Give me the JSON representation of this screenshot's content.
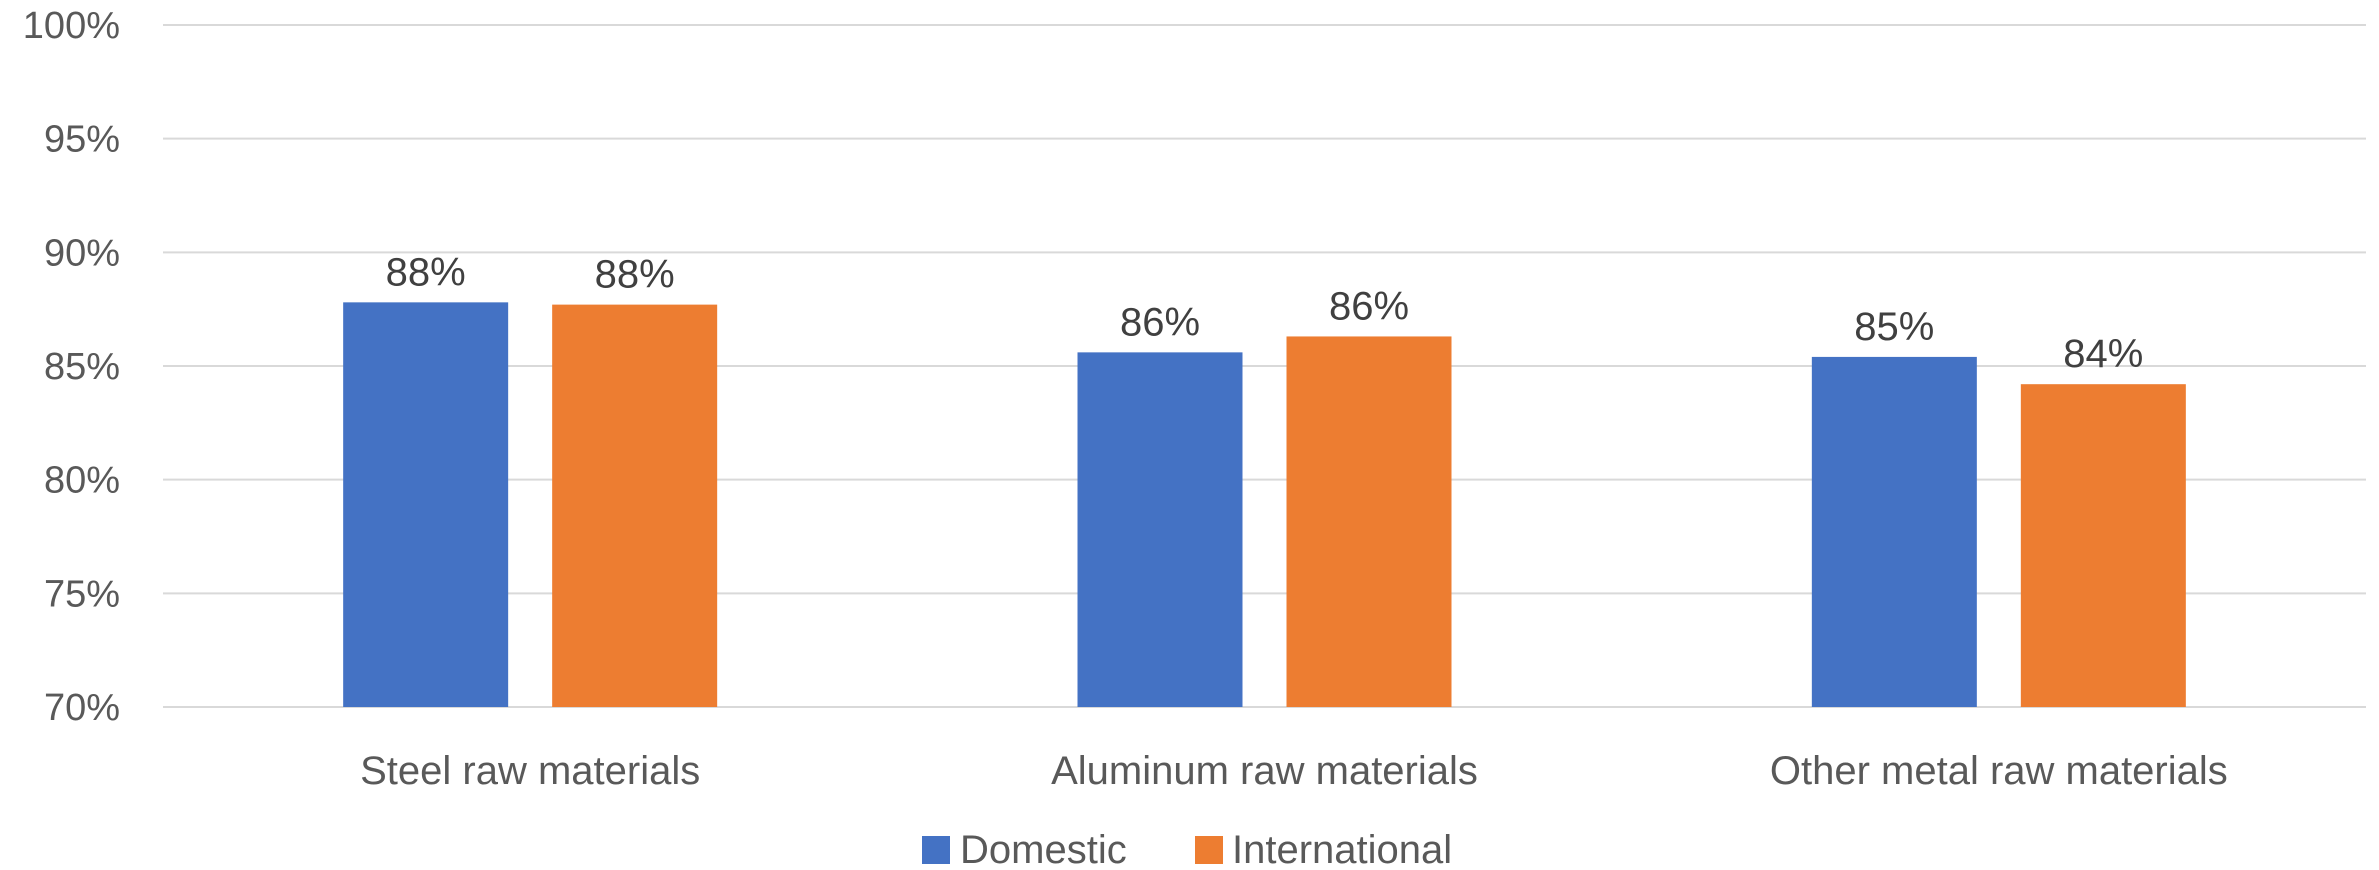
{
  "chart_data": {
    "type": "bar",
    "categories": [
      "Steel raw materials",
      "Aluminum raw materials",
      "Other metal raw materials"
    ],
    "series": [
      {
        "name": "Domestic",
        "color": "#4472C4",
        "values": [
          87.8,
          85.6,
          85.4
        ],
        "labels": [
          "88%",
          "86%",
          "85%"
        ]
      },
      {
        "name": "International",
        "color": "#ED7D31",
        "values": [
          87.7,
          86.3,
          84.2
        ],
        "labels": [
          "88%",
          "86%",
          "84%"
        ]
      }
    ],
    "ylim": [
      70,
      100
    ],
    "yticks": [
      70,
      75,
      80,
      85,
      90,
      95,
      100
    ],
    "ytick_labels": [
      "70%",
      "75%",
      "80%",
      "85%",
      "90%",
      "95%",
      "100%"
    ],
    "grid": true,
    "legend_position": "bottom",
    "title": "",
    "xlabel": "",
    "ylabel": ""
  }
}
